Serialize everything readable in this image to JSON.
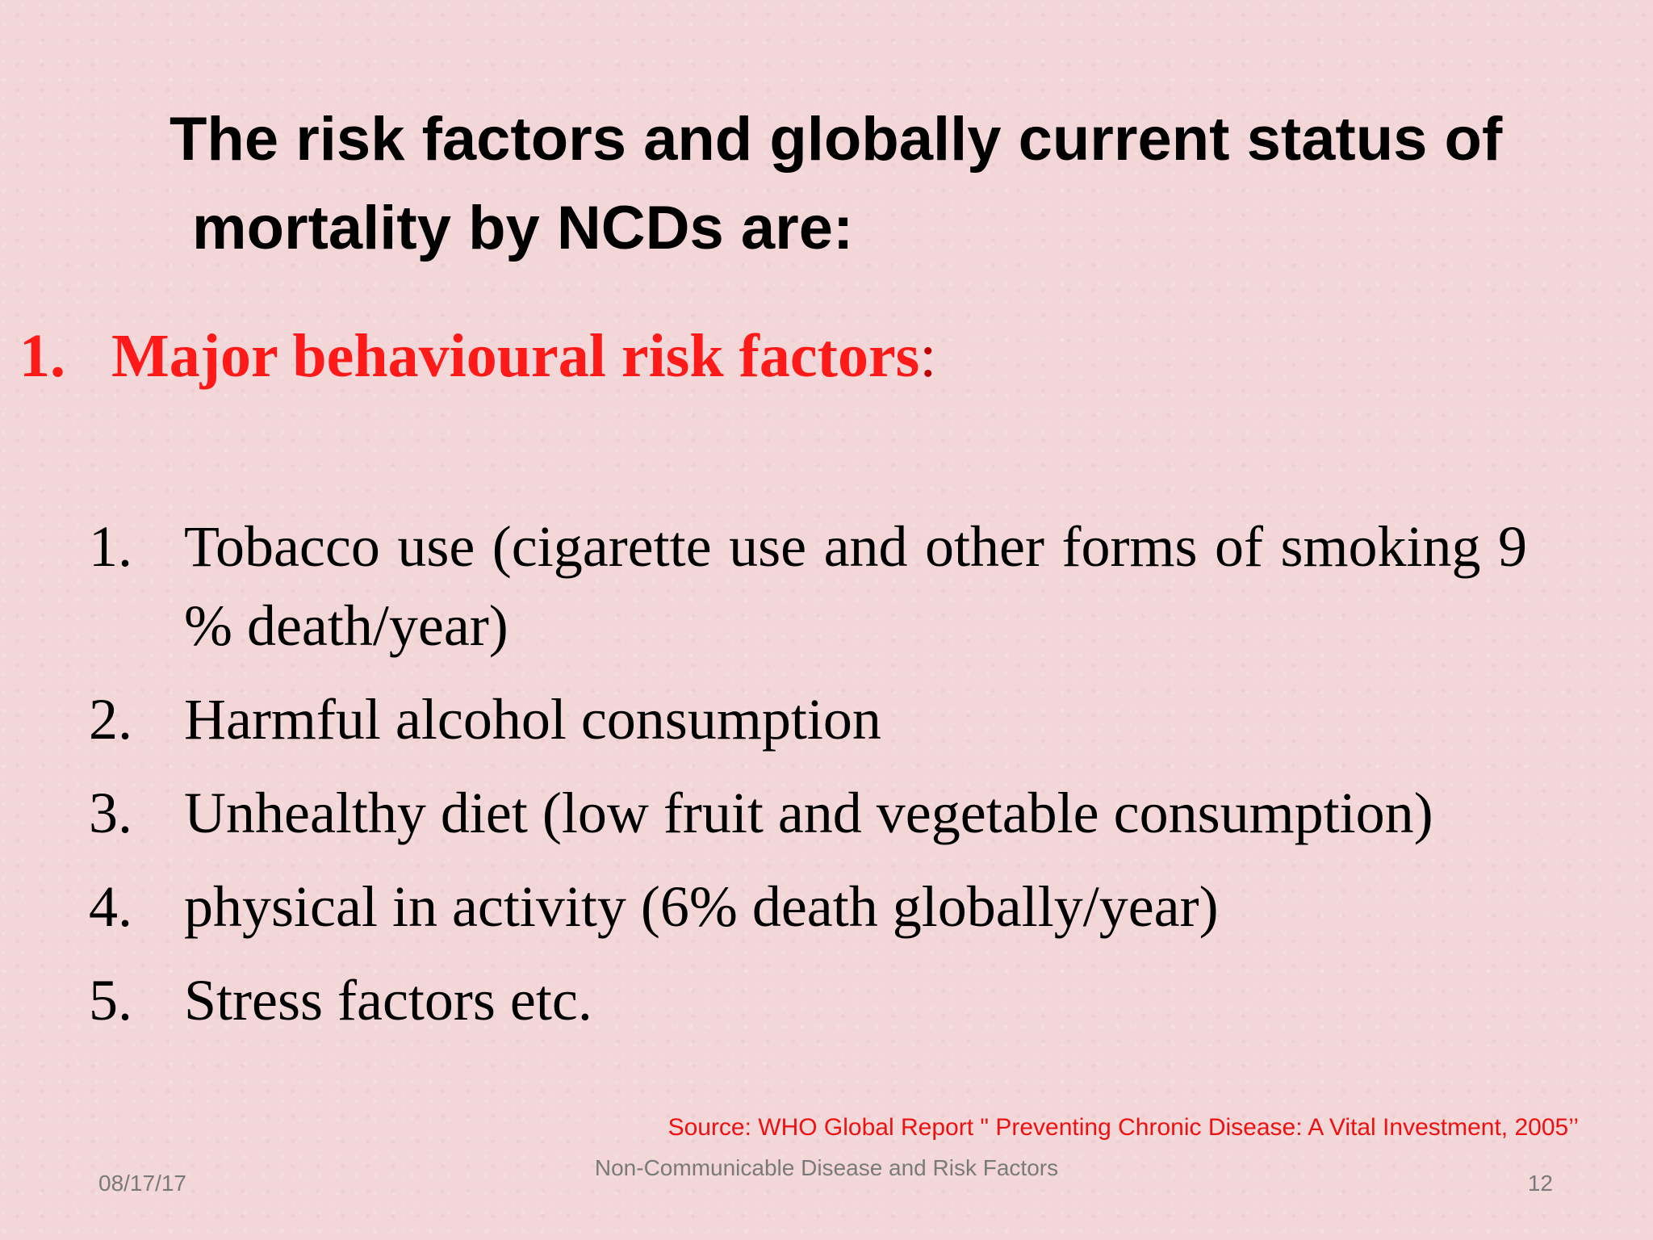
{
  "title": {
    "line1": "The risk factors and globally current status of",
    "line2": "mortality by NCDs are:"
  },
  "section": {
    "number": "1.",
    "heading": "Major behavioural risk factors",
    "colon": ":"
  },
  "items": [
    {
      "number": "1.",
      "text": "Tobacco use (cigarette use and other forms of smoking 9 % death/year)"
    },
    {
      "number": "2.",
      "text": "Harmful alcohol consumption"
    },
    {
      "number": "3.",
      "text": "Unhealthy diet (low fruit and vegetable consumption)"
    },
    {
      "number": "4.",
      "text": "physical in activity  (6% death globally/year)"
    },
    {
      "number": "5.",
      "text": "Stress factors etc."
    }
  ],
  "source": "Source:  WHO Global Report \" Preventing Chronic Disease: A Vital Investment, 2005’’",
  "footer": {
    "date": "08/17/17",
    "center": "Non-Communicable Disease and Risk Factors",
    "page": "12"
  },
  "colors": {
    "background": "#f2d6d8",
    "heading_red": "#ff1a1a",
    "source_red": "#ee1111",
    "footer_gray": "#7a7a7a"
  }
}
